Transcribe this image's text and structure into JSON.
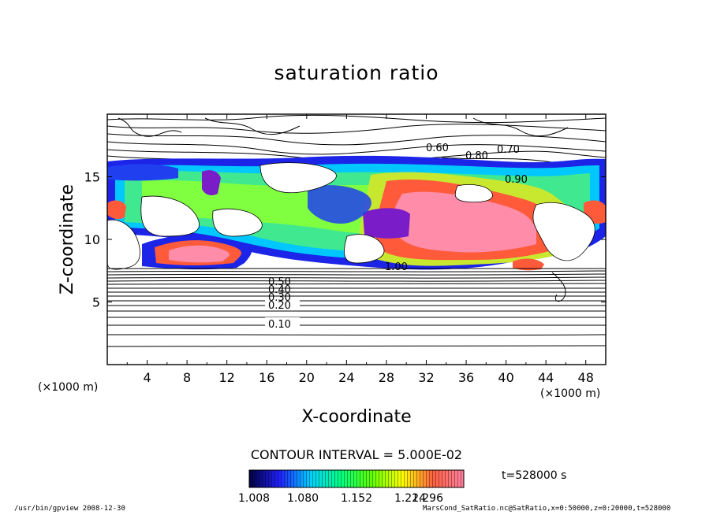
{
  "chart_data": {
    "type": "heatmap",
    "title": "saturation ratio",
    "xlabel": "X-coordinate",
    "ylabel": "Z-coordinate",
    "x_unit": "(×1000 m)",
    "z_unit": "(×1000 m)",
    "x_ticks": [
      4,
      8,
      12,
      16,
      20,
      24,
      28,
      32,
      36,
      40,
      44,
      48
    ],
    "z_ticks": [
      5,
      10,
      15
    ],
    "xlim": [
      0,
      50
    ],
    "zlim": [
      0,
      20
    ],
    "contour_interval_label": "CONTOUR INTERVAL = 5.000E-02",
    "contour_labels": [
      "0.10",
      "0.20",
      "0.30",
      "0.40",
      "0.50",
      "0.60",
      "0.70",
      "0.80",
      "0.90",
      "1.00"
    ],
    "colorbar": {
      "min": 1.008,
      "max": 1.296,
      "tick_labels": [
        "1.008",
        "1.080",
        "1.152",
        "1.224",
        "1.296"
      ],
      "colors": [
        "#000040",
        "#2020ff",
        "#00d0ff",
        "#00ff80",
        "#60ff00",
        "#ffff00",
        "#ff6040",
        "#ff80a0"
      ]
    },
    "time_label": "t=528000 s",
    "grid": false
  },
  "footer": {
    "left": "/usr/bin/gpview   2008-12-30",
    "right": "MarsCond_SatRatio.nc@SatRatio,x=0:50000,z=0:20000,t=528000"
  }
}
